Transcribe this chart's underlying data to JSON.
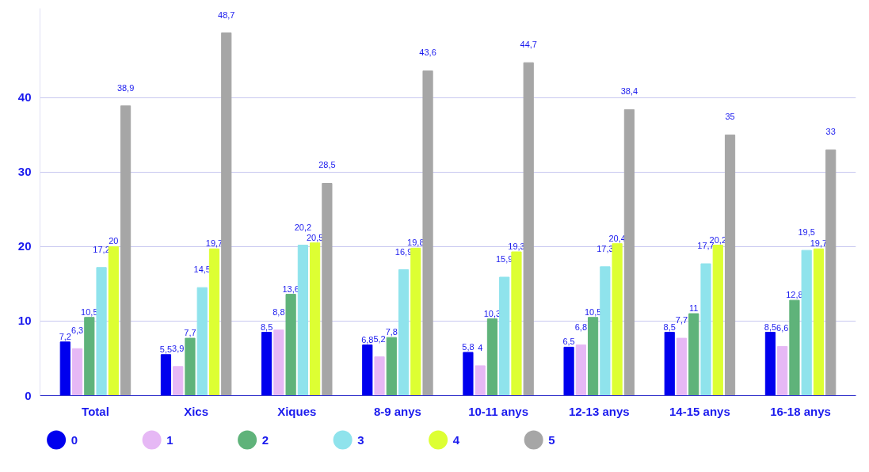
{
  "chart_data": {
    "type": "bar",
    "categories": [
      "Total",
      "Xics",
      "Xiques",
      "8-9 anys",
      "10-11 anys",
      "12-13 anys",
      "14-15 anys",
      "16-18 anys"
    ],
    "series": [
      {
        "name": "0",
        "color": "#0000ee",
        "values": [
          7.2,
          5.5,
          8.5,
          6.8,
          5.8,
          6.5,
          8.5,
          8.5
        ],
        "value_labels": [
          "7,2",
          "5,5",
          "8,5",
          "6,8",
          "5,8",
          "6,5",
          "8,5",
          "8,5"
        ]
      },
      {
        "name": "1",
        "color": "#e6b8f5",
        "values": [
          6.3,
          3.9,
          8.8,
          5.2,
          4,
          6.8,
          7.7,
          6.6
        ],
        "value_labels": [
          "6,3",
          "3,9",
          "8,8",
          "5,2",
          "4",
          "6,8",
          "7,7",
          "6,6"
        ]
      },
      {
        "name": "2",
        "color": "#5fb37a",
        "values": [
          10.5,
          7.7,
          13.6,
          7.8,
          10.3,
          10.5,
          11,
          12.8
        ],
        "value_labels": [
          "10,5",
          "7,7",
          "13,6",
          "7,8",
          "10,3",
          "10,5",
          "11",
          "12,8"
        ]
      },
      {
        "name": "3",
        "color": "#8fe3ec",
        "values": [
          17.2,
          14.5,
          20.2,
          16.9,
          15.9,
          17.3,
          17.7,
          19.5
        ],
        "value_labels": [
          "17,2",
          "14,5",
          "20,2",
          "16,9",
          "15,9",
          "17,3",
          "17,7",
          "19,5"
        ]
      },
      {
        "name": "4",
        "color": "#ddff33",
        "values": [
          20,
          19.7,
          20.5,
          19.8,
          19.3,
          20.4,
          20.2,
          19.7
        ],
        "value_labels": [
          "20",
          "19,7",
          "20,5",
          "19,8",
          "19,3",
          "20,4",
          "20,2",
          "19,7"
        ]
      },
      {
        "name": "5",
        "color": "#a6a6a6",
        "values": [
          38.9,
          48.7,
          28.5,
          43.6,
          44.7,
          38.4,
          35,
          33
        ],
        "value_labels": [
          "38,9",
          "48,7",
          "28,5",
          "43,6",
          "44,7",
          "38,4",
          "35",
          "33"
        ]
      }
    ],
    "ylim": [
      0,
      52
    ],
    "yticks": [
      0,
      10,
      20,
      30,
      40
    ],
    "grid": "y",
    "legend": "bottom"
  }
}
